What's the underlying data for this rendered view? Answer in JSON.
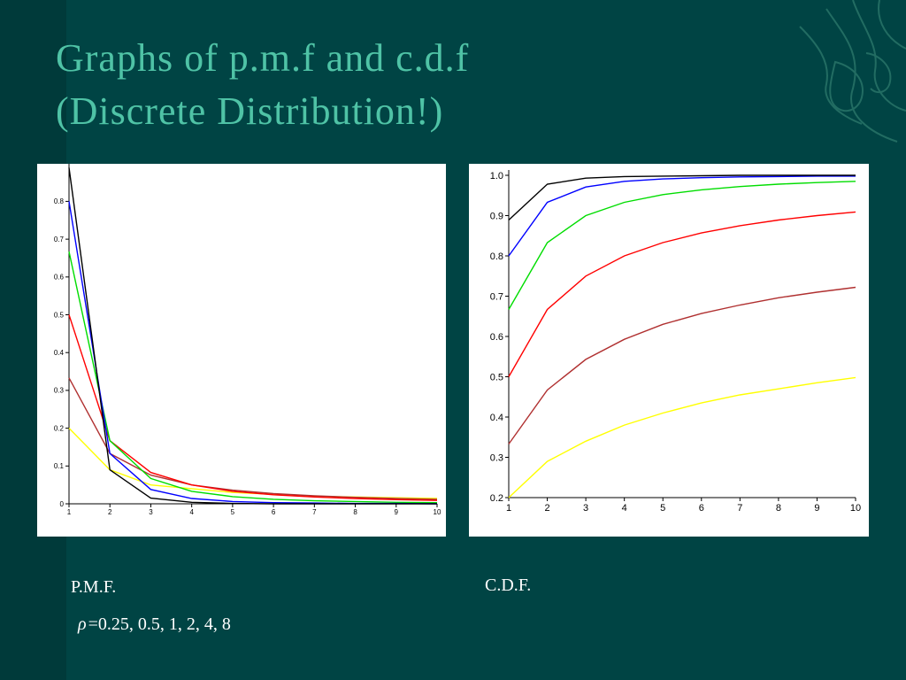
{
  "slide": {
    "title_line1": "Graphs of p.m.f and c.d.f",
    "title_line2": "(Discrete Distribution!)",
    "pmf_caption": "P.M.F.",
    "cdf_caption": "C.D.F.",
    "rho_symbol": "ρ",
    "rho_values_text": "=0.25, 0.5, 1, 2, 4, 8",
    "background_color": "#004444",
    "title_color": "#4fc3a6"
  },
  "chart_data": [
    {
      "id": "pmf",
      "type": "line",
      "title": "",
      "xlabel": "",
      "ylabel": "",
      "x": [
        1,
        2,
        3,
        4,
        5,
        6,
        7,
        8,
        9,
        10
      ],
      "xticks": [
        1,
        2,
        3,
        4,
        5,
        6,
        7,
        8,
        9,
        10
      ],
      "yticks": [
        0,
        0.1,
        0.2,
        0.3,
        0.4,
        0.5,
        0.6,
        0.7,
        0.8
      ],
      "xlim": [
        1,
        10
      ],
      "ylim": [
        0,
        0.89
      ],
      "grid": false,
      "series": [
        {
          "color": "#ffff00",
          "values": [
            0.2,
            0.09,
            0.05,
            0.04,
            0.03,
            0.025,
            0.02,
            0.018,
            0.016,
            0.014
          ]
        },
        {
          "color": "#b03030",
          "values": [
            0.333,
            0.133,
            0.076,
            0.05,
            0.036,
            0.027,
            0.021,
            0.017,
            0.014,
            0.012
          ]
        },
        {
          "color": "#ff0000",
          "values": [
            0.5,
            0.167,
            0.083,
            0.05,
            0.033,
            0.024,
            0.018,
            0.014,
            0.011,
            0.009
          ]
        },
        {
          "color": "#00dd00",
          "values": [
            0.667,
            0.167,
            0.067,
            0.033,
            0.019,
            0.012,
            0.008,
            0.006,
            0.004,
            0.003
          ]
        },
        {
          "color": "#0000ff",
          "values": [
            0.8,
            0.133,
            0.038,
            0.014,
            0.006,
            0.003,
            0.002,
            0.001,
            0.001,
            0.0
          ]
        },
        {
          "color": "#000000",
          "values": [
            0.889,
            0.09,
            0.015,
            0.004,
            0.001,
            0.0,
            0.0,
            0.0,
            0.0,
            0.0
          ]
        }
      ]
    },
    {
      "id": "cdf",
      "type": "line",
      "title": "",
      "xlabel": "",
      "ylabel": "",
      "x": [
        1,
        2,
        3,
        4,
        5,
        6,
        7,
        8,
        9,
        10
      ],
      "xticks": [
        1,
        2,
        3,
        4,
        5,
        6,
        7,
        8,
        9,
        10
      ],
      "yticks": [
        0.2,
        0.3,
        0.4,
        0.5,
        0.6,
        0.7,
        0.8,
        0.9,
        1.0
      ],
      "xlim": [
        1,
        10
      ],
      "ylim": [
        0.2,
        1.0
      ],
      "grid": false,
      "series": [
        {
          "color": "#ffff00",
          "values": [
            0.2,
            0.29,
            0.34,
            0.38,
            0.41,
            0.435,
            0.455,
            0.47,
            0.485,
            0.498
          ]
        },
        {
          "color": "#b03030",
          "values": [
            0.333,
            0.467,
            0.543,
            0.593,
            0.63,
            0.657,
            0.678,
            0.696,
            0.71,
            0.722
          ]
        },
        {
          "color": "#ff0000",
          "values": [
            0.5,
            0.667,
            0.75,
            0.8,
            0.833,
            0.857,
            0.875,
            0.889,
            0.9,
            0.909
          ]
        },
        {
          "color": "#00dd00",
          "values": [
            0.667,
            0.833,
            0.9,
            0.933,
            0.952,
            0.964,
            0.972,
            0.978,
            0.982,
            0.985
          ]
        },
        {
          "color": "#0000ff",
          "values": [
            0.8,
            0.933,
            0.971,
            0.985,
            0.991,
            0.994,
            0.996,
            0.997,
            0.998,
            0.998
          ]
        },
        {
          "color": "#000000",
          "values": [
            0.889,
            0.978,
            0.993,
            0.997,
            0.998,
            0.999,
            1.0,
            1.0,
            1.0,
            1.0
          ]
        }
      ]
    }
  ]
}
